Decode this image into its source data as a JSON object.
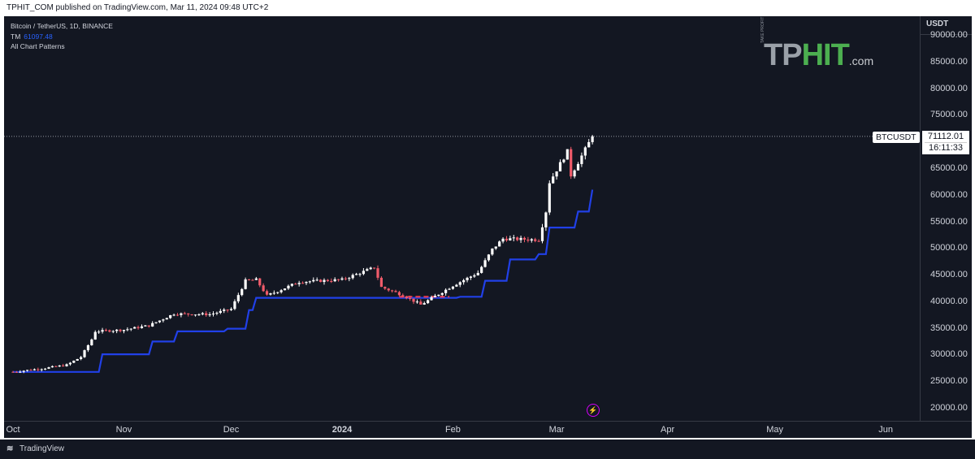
{
  "header": {
    "publish_text": "TPHIT_COM published on TradingView.com, Mar 11, 2024 09:48 UTC+2"
  },
  "legend": {
    "symbol_line": "Bitcoin / TetherUS, 1D, BINANCE",
    "tm_label": "TM",
    "tm_value": "61097.48",
    "patterns_label": "All Chart Patterns"
  },
  "price_scale": {
    "currency": "USDT",
    "ticks": [
      "90000.00",
      "85000.00",
      "80000.00",
      "75000.00",
      "70000.00",
      "65000.00",
      "60000.00",
      "55000.00",
      "50000.00",
      "45000.00",
      "40000.00",
      "35000.00",
      "30000.00",
      "25000.00",
      "20000.00"
    ]
  },
  "time_scale": {
    "labels": [
      "Oct",
      "Nov",
      "Dec",
      "2024",
      "Feb",
      "Mar",
      "Apr",
      "May",
      "Jun"
    ]
  },
  "last_price": {
    "symbol": "BTCUSDT",
    "price": "71112.01",
    "countdown": "16:11:33"
  },
  "logo": {
    "tp": "TP",
    "hit": "HIT",
    "com": ".com",
    "tagline": "TAKE PROFIT"
  },
  "footer": {
    "brand": "TradingView"
  },
  "colors": {
    "up": "#ffffff",
    "down": "#f05b6a",
    "trail_bull": "#2140e8",
    "trail_bear": "#ef3d4f",
    "background": "#131722"
  },
  "chart_data": {
    "type": "candlestick",
    "symbol": "BTCUSDT",
    "timeframe": "1D",
    "y_scale": [
      20000,
      90000
    ],
    "x_range": [
      "2023-10-01",
      "2024-06-10"
    ],
    "grid": false,
    "ohlc_anchors": [
      {
        "date": "2023-10-01",
        "close": 26900
      },
      {
        "date": "2023-10-10",
        "close": 27600
      },
      {
        "date": "2023-10-16",
        "close": 28200
      },
      {
        "date": "2023-10-20",
        "close": 29700
      },
      {
        "date": "2023-10-23",
        "close": 33000
      },
      {
        "date": "2023-10-24",
        "close": 34500
      },
      {
        "date": "2023-11-01",
        "close": 34800
      },
      {
        "date": "2023-11-08",
        "close": 35600
      },
      {
        "date": "2023-11-15",
        "close": 37800
      },
      {
        "date": "2023-11-25",
        "close": 37700
      },
      {
        "date": "2023-12-01",
        "close": 38700
      },
      {
        "date": "2023-12-05",
        "close": 44000
      },
      {
        "date": "2023-12-08",
        "close": 44200
      },
      {
        "date": "2023-12-11",
        "close": 41200
      },
      {
        "date": "2023-12-20",
        "close": 43800
      },
      {
        "date": "2024-01-01",
        "close": 44200
      },
      {
        "date": "2024-01-10",
        "close": 46500
      },
      {
        "date": "2024-01-12",
        "close": 42800
      },
      {
        "date": "2024-01-18",
        "close": 41300
      },
      {
        "date": "2024-01-23",
        "close": 39500
      },
      {
        "date": "2024-02-01",
        "close": 43100
      },
      {
        "date": "2024-02-08",
        "close": 45500
      },
      {
        "date": "2024-02-12",
        "close": 49900
      },
      {
        "date": "2024-02-15",
        "close": 51900
      },
      {
        "date": "2024-02-25",
        "close": 51700
      },
      {
        "date": "2024-02-27",
        "close": 57000
      },
      {
        "date": "2024-02-28",
        "close": 62500
      },
      {
        "date": "2024-03-04",
        "close": 68300
      },
      {
        "date": "2024-03-05",
        "close": 63800
      },
      {
        "date": "2024-03-11",
        "close": 71112.01
      }
    ],
    "trailing_stop": [
      {
        "date": "2023-10-01",
        "value": 26900
      },
      {
        "date": "2023-10-19",
        "value": 26900
      },
      {
        "date": "2023-10-26",
        "value": 30200
      },
      {
        "date": "2023-11-09",
        "value": 32600
      },
      {
        "date": "2023-11-16",
        "value": 34500
      },
      {
        "date": "2023-11-30",
        "value": 35000
      },
      {
        "date": "2023-12-06",
        "value": 38500
      },
      {
        "date": "2023-12-08",
        "value": 40800
      },
      {
        "date": "2024-02-03",
        "value": 41000
      },
      {
        "date": "2024-02-10",
        "value": 44000
      },
      {
        "date": "2024-02-17",
        "value": 48000
      },
      {
        "date": "2024-02-25",
        "value": 49000
      },
      {
        "date": "2024-02-28",
        "value": 54000
      },
      {
        "date": "2024-03-07",
        "value": 57000
      },
      {
        "date": "2024-03-11",
        "value": 61097.48
      }
    ],
    "trailing_bear_segments": [
      [
        "2024-01-17",
        "2024-01-31"
      ]
    ],
    "last_price": 71112.01,
    "last_price_label": "BTCUSDT",
    "countdown": "16:11:33",
    "indicator": {
      "name": "TM",
      "value": 61097.48
    }
  }
}
